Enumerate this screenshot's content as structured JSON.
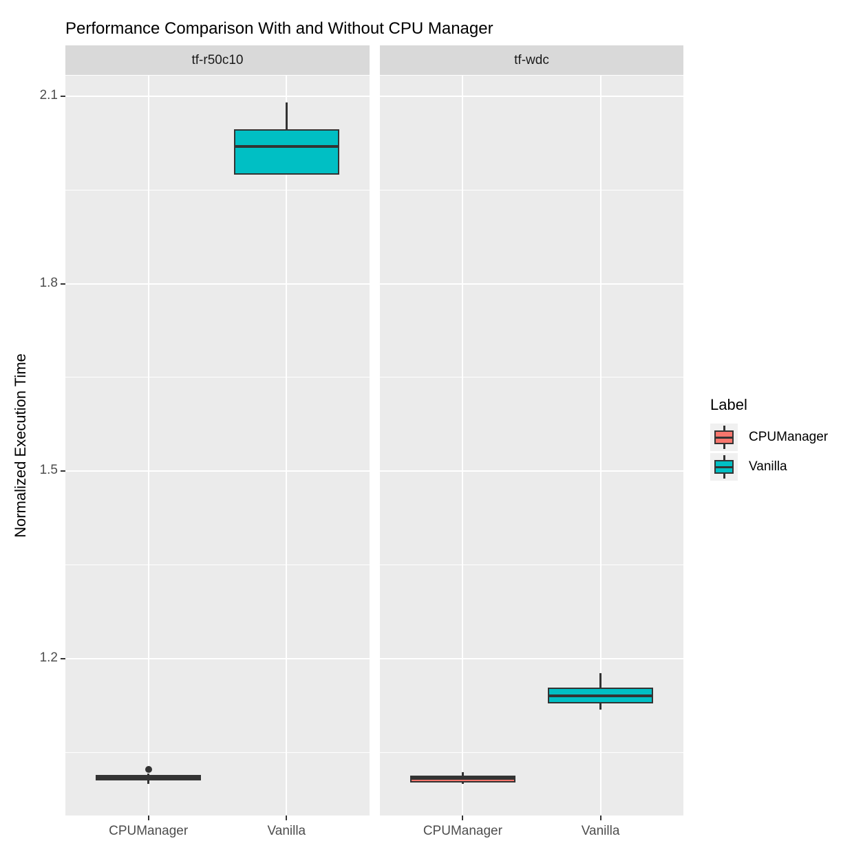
{
  "chart_data": {
    "type": "boxplot",
    "title": "Performance Comparison With and Without CPU Manager",
    "ylabel": "Normalized Execution Time",
    "xlabel": "",
    "x_categories": [
      "CPUManager",
      "Vanilla"
    ],
    "yticks": [
      1.2,
      1.5,
      1.8,
      2.1
    ],
    "ytick_labels": [
      "1.2",
      "1.5",
      "1.8",
      "2.1"
    ],
    "minor_yticks": [
      1.05,
      1.35,
      1.65,
      1.95
    ],
    "ylim": [
      0.949,
      2.133
    ],
    "grid": "major-and-minor, white on gray panel",
    "legend_position": "right",
    "facets": [
      {
        "label": "tf-r50c10",
        "boxes": [
          {
            "group": "CPUManager",
            "min": 1.0,
            "q1": 1.005,
            "median": 1.01,
            "q3": 1.014,
            "max": 1.016,
            "outliers": [
              1.023
            ]
          },
          {
            "group": "Vanilla",
            "min": 1.975,
            "q1": 1.975,
            "median": 2.02,
            "q3": 2.047,
            "max": 2.09,
            "outliers": []
          }
        ]
      },
      {
        "label": "tf-wdc",
        "boxes": [
          {
            "group": "CPUManager",
            "min": 1.0,
            "q1": 1.002,
            "median": 1.008,
            "q3": 1.013,
            "max": 1.018,
            "outliers": []
          },
          {
            "group": "Vanilla",
            "min": 1.118,
            "q1": 1.128,
            "median": 1.14,
            "q3": 1.154,
            "max": 1.177,
            "outliers": []
          }
        ]
      }
    ],
    "legend": {
      "title": "Label",
      "entries": [
        {
          "label": "CPUManager",
          "color": "#F8766D"
        },
        {
          "label": "Vanilla",
          "color": "#00BFC4"
        }
      ]
    },
    "colors": {
      "fill_cpumanager": "#F8766D",
      "fill_vanilla": "#00BFC4",
      "box_border": "#333333",
      "panel_bg": "#EBEBEB",
      "strip_bg": "#D9D9D9",
      "gridline": "#FFFFFF",
      "tick_label": "#4D4D4D",
      "text": "#000000"
    }
  }
}
